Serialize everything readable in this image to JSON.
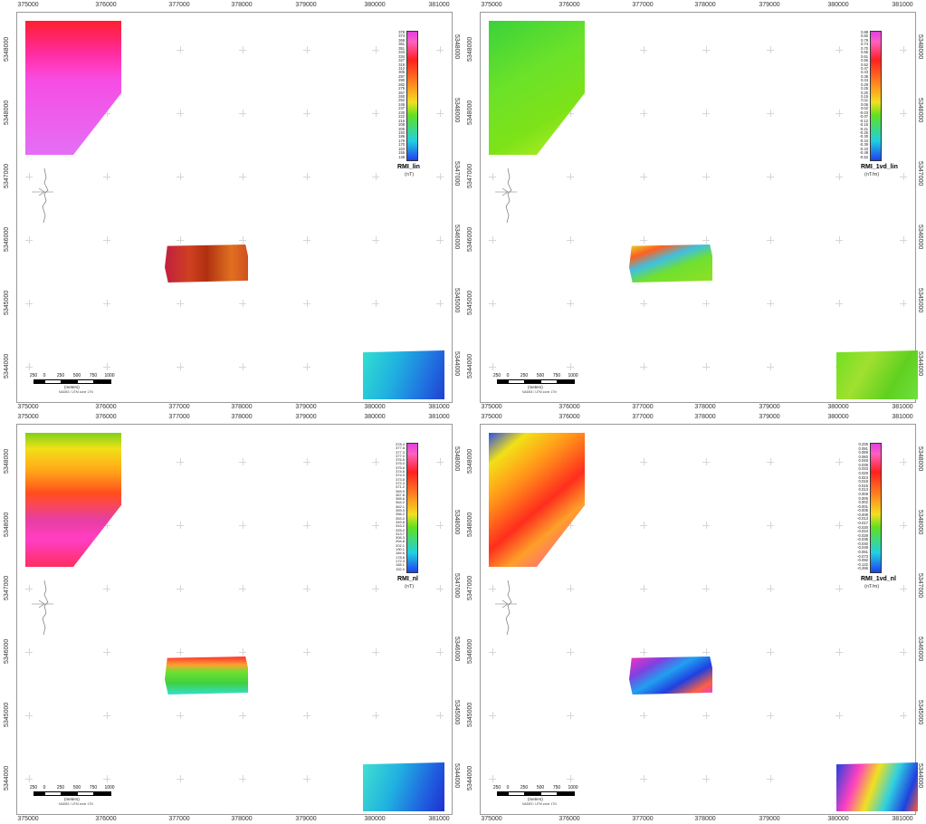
{
  "x_ticks": [
    "375000",
    "376000",
    "377000",
    "378000",
    "379000",
    "380000",
    "381000"
  ],
  "y_ticks": [
    "5348000",
    "5348000",
    "5347000",
    "5346000",
    "5345000",
    "5344000"
  ],
  "scale": {
    "labels": [
      "250",
      "0",
      "250",
      "500",
      "750",
      "1000"
    ],
    "unit": "(meters)",
    "note": "NAD83 / UTM zone 17N"
  },
  "colors": {
    "magenta": "#e040e0",
    "pink": "#ff60c0",
    "red": "#ff2020",
    "orange": "#ff9020",
    "yellow": "#f0e020",
    "green": "#60e020",
    "cyan": "#20d0e0",
    "blue": "#2040f0"
  },
  "panels": [
    {
      "id": "rmi-lin",
      "legend_title": "RMI_lin",
      "legend_unit": "(nT)",
      "legend_values": [
        "378",
        "374",
        "369",
        "361",
        "351",
        "343",
        "334",
        "327",
        "319",
        "312",
        "305",
        "297",
        "290",
        "282",
        "275",
        "267",
        "260",
        "252",
        "245",
        "237",
        "230",
        "222",
        "215",
        "208",
        "200",
        "193",
        "186",
        "179",
        "170",
        "163",
        "155",
        "148"
      ]
    },
    {
      "id": "rmi-1vd-lin",
      "legend_title": "RMI_1vd_lin",
      "legend_unit": "(nT/m)",
      "legend_values": [
        "0.88",
        "0.82",
        "0.79",
        "0.74",
        "0.70",
        "0.65",
        "0.61",
        "0.56",
        "0.52",
        "0.47",
        "0.43",
        "0.38",
        "0.34",
        "0.29",
        "0.25",
        "0.20",
        "0.15",
        "0.11",
        "0.06",
        "0.02",
        "-0.03",
        "-0.07",
        "-0.12",
        "-0.16",
        "-0.21",
        "-0.25",
        "-0.30",
        "-0.34",
        "-0.39",
        "-0.43",
        "-0.48",
        "-0.52"
      ]
    },
    {
      "id": "rmi-nl",
      "legend_title": "RMI_nl",
      "legend_unit": "(nT)",
      "legend_values": [
        "378.4",
        "377.8",
        "377.3",
        "377.0",
        "376.5",
        "376.0",
        "375.6",
        "374.6",
        "374.0",
        "373.5",
        "372.3",
        "371.2",
        "369.9",
        "367.8",
        "365.6",
        "364.2",
        "362.1",
        "359.3",
        "356.2",
        "353.0",
        "349.8",
        "343.2",
        "325.0",
        "313.7",
        "306.3",
        "264.8",
        "202.1",
        "190.1",
        "184.6",
        "178.8",
        "172.3",
        "165.1",
        "152.0"
      ]
    },
    {
      "id": "rmi-1vd-nl",
      "legend_title": "RMI_1vd_nl",
      "legend_unit": "(nT/m)",
      "legend_values": [
        "0.235",
        "0.091",
        "0.069",
        "0.060",
        "0.048",
        "0.039",
        "0.033",
        "0.028",
        "0.023",
        "0.019",
        "0.015",
        "0.013",
        "0.009",
        "0.005",
        "0.002",
        "-0.001",
        "-0.005",
        "-0.009",
        "-0.013",
        "-0.017",
        "-0.020",
        "-0.024",
        "-0.029",
        "-0.035",
        "-0.040",
        "-0.048",
        "-0.061",
        "-0.073",
        "-0.092",
        "-0.122",
        "-0.266"
      ]
    }
  ]
}
